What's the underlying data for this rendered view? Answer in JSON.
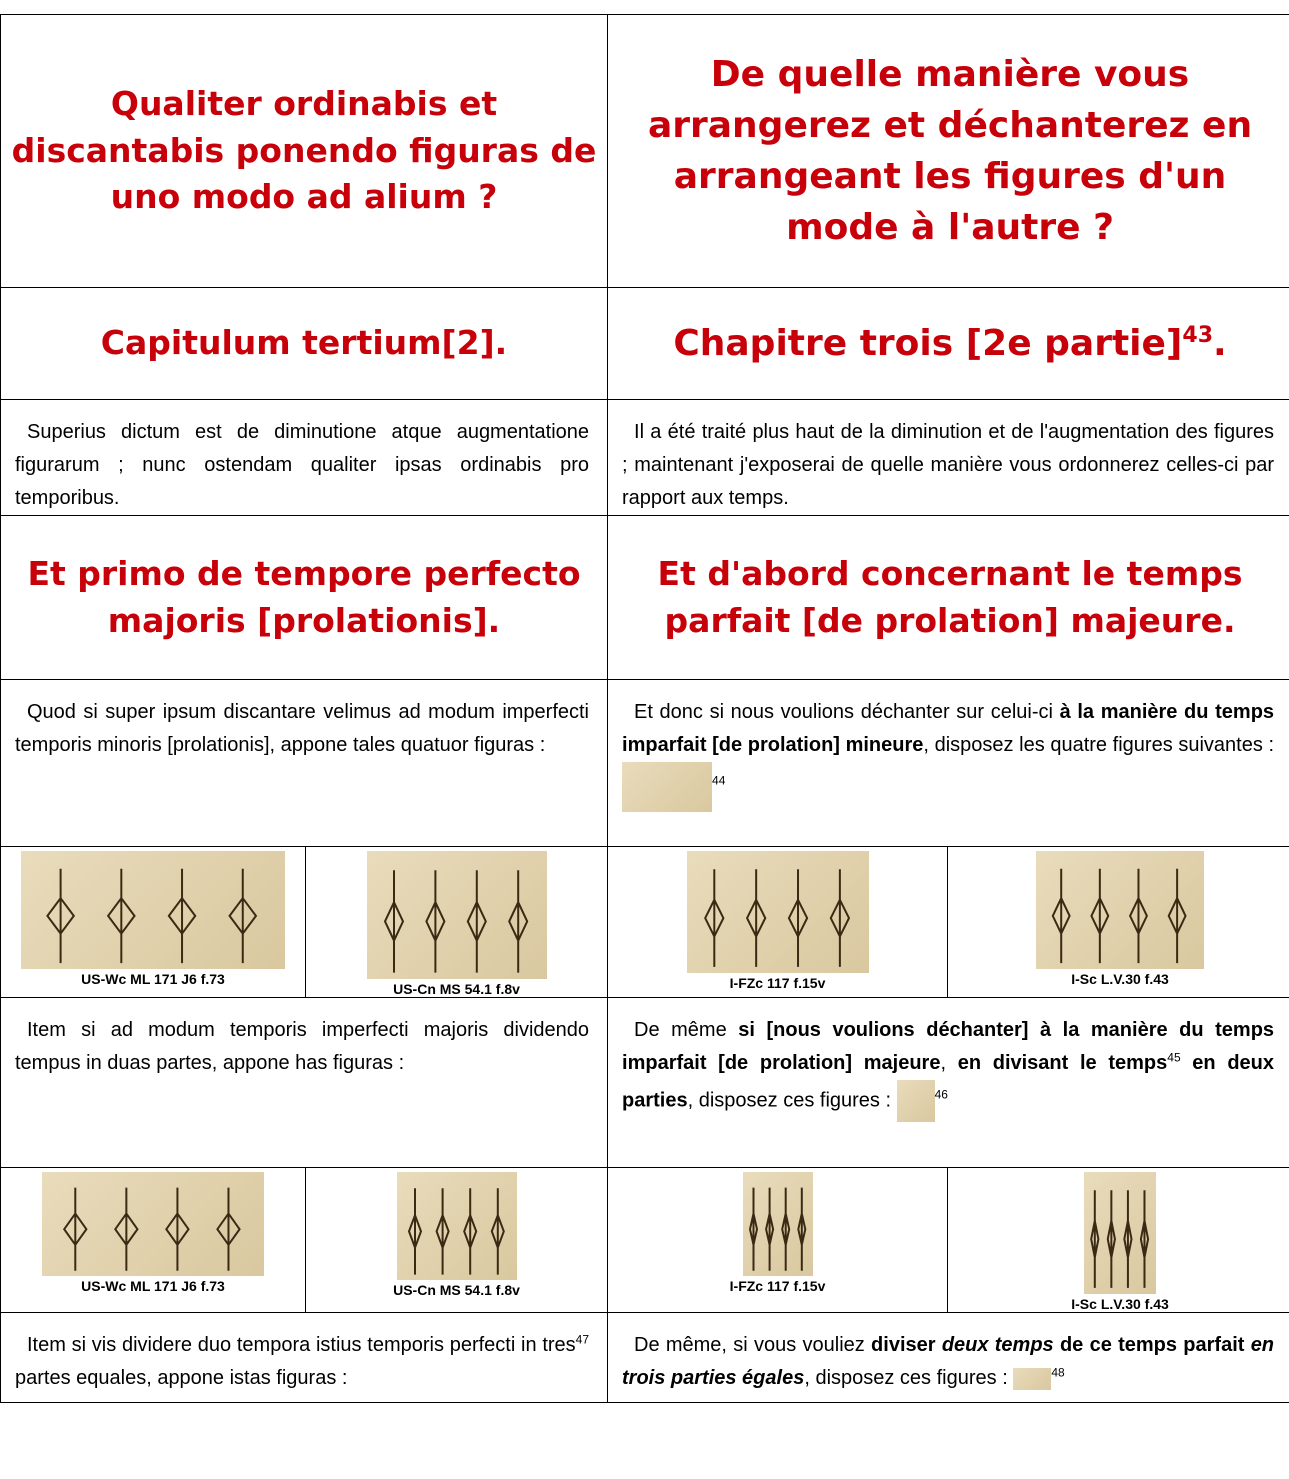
{
  "heading_1": {
    "latin": "Qualiter ordinabis et discantabis ponendo figuras de uno modo ad alium ?",
    "french": "De quelle manière vous arrangerez et déchanterez en arrangeant les figures d'un mode à l'autre ?"
  },
  "heading_2": {
    "latin": "Capitulum tertium[2].",
    "french": [
      "Chapitre trois [2e partie]",
      "43",
      "."
    ]
  },
  "paragraph_1": {
    "latin": "Superius dictum est de diminutione atque augmentatione figurarum ; nunc ostendam qualiter ipsas ordinabis pro temporibus.",
    "french": "Il a été traité plus haut de la diminution et de l'augmentation des figures ; maintenant j'exposerai de quelle manière vous ordonnerez celles-ci par rapport aux temps."
  },
  "heading_3": {
    "latin": "Et primo de tempore perfecto majoris [prolationis].",
    "french": "Et d'abord concernant le temps parfait [de prolation] majeure."
  },
  "paragraph_2": {
    "latin": "Quod si super ipsum discantare velimus ad modum imperfecti temporis minoris [prolationis], appone tales quatuor figuras :",
    "french": [
      "Et donc si nous voulions déchanter sur celui-ci ",
      "à la manière du temps imparfait [de prolation] mineure",
      ", disposez les quatre figures suivantes : ",
      "44"
    ]
  },
  "figures_1": [
    "US-Wc ML 171 J6 f.73",
    "US-Cn MS 54.1 f.8v",
    "I-FZc 117 f.15v",
    "I-Sc L.V.30 f.43"
  ],
  "paragraph_3": {
    "latin": "Item si ad modum temporis imperfecti majoris dividendo tempus in duas partes, appone has figuras :",
    "french": [
      "De  même ",
      "si [nous voulions déchanter] à la manière du temps imparfait [de prolation] majeure",
      ", ",
      "en divisant le temps",
      "45",
      " en deux parties",
      ", disposez ces figures : ",
      "46"
    ]
  },
  "figures_2": [
    "US-Wc ML 171 J6 f.73",
    "US-Cn MS 54.1 f.8v",
    "I-FZc 117 f.15v",
    "I-Sc L.V.30 f.43"
  ],
  "paragraph_4": {
    "latin": [
      "Item si vis dividere duo tempora istius temporis perfecti in tres",
      "47",
      " partes equales, appone istas figuras :"
    ],
    "french": [
      "De même, si vous vouliez ",
      "diviser ",
      "deux temps",
      " de ce temps parfait ",
      "en trois parties égales",
      ", disposez ces figures : ",
      "48"
    ]
  }
}
